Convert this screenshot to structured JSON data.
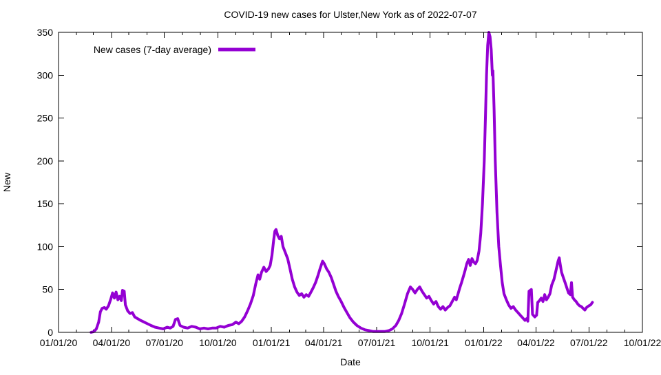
{
  "chart_data": {
    "type": "line",
    "title": "COVID-19 new cases for Ulster,New York as of 2022-07-07",
    "xlabel": "Date",
    "ylabel": "New",
    "x_range": [
      "2020-01-01",
      "2022-10-01"
    ],
    "ylim": [
      0,
      350
    ],
    "grid": false,
    "y_ticks": [
      0,
      50,
      100,
      150,
      200,
      250,
      300,
      350
    ],
    "x_ticks": [
      {
        "date": "2020-01-01",
        "label": "01/01/20"
      },
      {
        "date": "2020-04-01",
        "label": "04/01/20"
      },
      {
        "date": "2020-07-01",
        "label": "07/01/20"
      },
      {
        "date": "2020-10-01",
        "label": "10/01/20"
      },
      {
        "date": "2021-01-01",
        "label": "01/01/21"
      },
      {
        "date": "2021-04-01",
        "label": "04/01/21"
      },
      {
        "date": "2021-07-01",
        "label": "07/01/21"
      },
      {
        "date": "2021-10-01",
        "label": "10/01/21"
      },
      {
        "date": "2022-01-01",
        "label": "01/01/22"
      },
      {
        "date": "2022-04-01",
        "label": "04/01/22"
      },
      {
        "date": "2022-07-01",
        "label": "07/01/22"
      },
      {
        "date": "2022-10-01",
        "label": "10/01/22"
      }
    ],
    "x_minor_unit": "month",
    "legend": {
      "position": "top-left-inside",
      "entries": [
        {
          "label": "New cases (7-day average)",
          "color": "#9400d3"
        }
      ]
    },
    "series": [
      {
        "name": "New cases (7-day average)",
        "color": "#9400d3",
        "line_width": 4,
        "points": [
          [
            "2020-02-26",
            0
          ],
          [
            "2020-03-02",
            1
          ],
          [
            "2020-03-06",
            4
          ],
          [
            "2020-03-10",
            12
          ],
          [
            "2020-03-13",
            24
          ],
          [
            "2020-03-16",
            28
          ],
          [
            "2020-03-20",
            29
          ],
          [
            "2020-03-23",
            27
          ],
          [
            "2020-03-27",
            31
          ],
          [
            "2020-03-31",
            39
          ],
          [
            "2020-04-03",
            46
          ],
          [
            "2020-04-06",
            40
          ],
          [
            "2020-04-09",
            47
          ],
          [
            "2020-04-12",
            38
          ],
          [
            "2020-04-15",
            42
          ],
          [
            "2020-04-18",
            37
          ],
          [
            "2020-04-20",
            49
          ],
          [
            "2020-04-23",
            48
          ],
          [
            "2020-04-25",
            32
          ],
          [
            "2020-04-29",
            25
          ],
          [
            "2020-05-03",
            22
          ],
          [
            "2020-05-07",
            23
          ],
          [
            "2020-05-11",
            18
          ],
          [
            "2020-05-16",
            16
          ],
          [
            "2020-05-21",
            14
          ],
          [
            "2020-05-27",
            12
          ],
          [
            "2020-06-02",
            10
          ],
          [
            "2020-06-08",
            8
          ],
          [
            "2020-06-15",
            6
          ],
          [
            "2020-06-22",
            5
          ],
          [
            "2020-06-29",
            4
          ],
          [
            "2020-07-06",
            6
          ],
          [
            "2020-07-11",
            5
          ],
          [
            "2020-07-16",
            7
          ],
          [
            "2020-07-20",
            15
          ],
          [
            "2020-07-24",
            16
          ],
          [
            "2020-07-28",
            8
          ],
          [
            "2020-08-03",
            6
          ],
          [
            "2020-08-10",
            5
          ],
          [
            "2020-08-17",
            7
          ],
          [
            "2020-08-24",
            6
          ],
          [
            "2020-08-31",
            4
          ],
          [
            "2020-09-07",
            5
          ],
          [
            "2020-09-14",
            4
          ],
          [
            "2020-09-21",
            5
          ],
          [
            "2020-09-28",
            5
          ],
          [
            "2020-10-05",
            7
          ],
          [
            "2020-10-12",
            6
          ],
          [
            "2020-10-19",
            8
          ],
          [
            "2020-10-26",
            9
          ],
          [
            "2020-11-01",
            12
          ],
          [
            "2020-11-06",
            10
          ],
          [
            "2020-11-11",
            13
          ],
          [
            "2020-11-16",
            18
          ],
          [
            "2020-11-21",
            25
          ],
          [
            "2020-11-26",
            33
          ],
          [
            "2020-12-01",
            43
          ],
          [
            "2020-12-05",
            56
          ],
          [
            "2020-12-09",
            67
          ],
          [
            "2020-12-12",
            62
          ],
          [
            "2020-12-15",
            70
          ],
          [
            "2020-12-19",
            76
          ],
          [
            "2020-12-23",
            71
          ],
          [
            "2020-12-27",
            74
          ],
          [
            "2020-12-30",
            78
          ],
          [
            "2021-01-02",
            90
          ],
          [
            "2021-01-05",
            108
          ],
          [
            "2021-01-07",
            118
          ],
          [
            "2021-01-09",
            120
          ],
          [
            "2021-01-12",
            113
          ],
          [
            "2021-01-15",
            109
          ],
          [
            "2021-01-18",
            112
          ],
          [
            "2021-01-21",
            100
          ],
          [
            "2021-01-25",
            93
          ],
          [
            "2021-01-29",
            86
          ],
          [
            "2021-02-02",
            74
          ],
          [
            "2021-02-06",
            62
          ],
          [
            "2021-02-10",
            53
          ],
          [
            "2021-02-14",
            47
          ],
          [
            "2021-02-18",
            43
          ],
          [
            "2021-02-22",
            45
          ],
          [
            "2021-02-26",
            41
          ],
          [
            "2021-03-02",
            44
          ],
          [
            "2021-03-06",
            42
          ],
          [
            "2021-03-10",
            47
          ],
          [
            "2021-03-14",
            52
          ],
          [
            "2021-03-18",
            58
          ],
          [
            "2021-03-22",
            66
          ],
          [
            "2021-03-26",
            75
          ],
          [
            "2021-03-30",
            83
          ],
          [
            "2021-04-02",
            80
          ],
          [
            "2021-04-06",
            74
          ],
          [
            "2021-04-10",
            70
          ],
          [
            "2021-04-14",
            64
          ],
          [
            "2021-04-18",
            56
          ],
          [
            "2021-04-22",
            48
          ],
          [
            "2021-04-26",
            42
          ],
          [
            "2021-05-01",
            36
          ],
          [
            "2021-05-06",
            29
          ],
          [
            "2021-05-11",
            23
          ],
          [
            "2021-05-16",
            17
          ],
          [
            "2021-05-22",
            12
          ],
          [
            "2021-05-28",
            8
          ],
          [
            "2021-06-04",
            5
          ],
          [
            "2021-06-11",
            3
          ],
          [
            "2021-06-18",
            2
          ],
          [
            "2021-06-25",
            1
          ],
          [
            "2021-07-05",
            1
          ],
          [
            "2021-07-15",
            1
          ],
          [
            "2021-07-22",
            2
          ],
          [
            "2021-07-28",
            4
          ],
          [
            "2021-08-03",
            8
          ],
          [
            "2021-08-08",
            14
          ],
          [
            "2021-08-13",
            22
          ],
          [
            "2021-08-18",
            33
          ],
          [
            "2021-08-23",
            45
          ],
          [
            "2021-08-28",
            53
          ],
          [
            "2021-09-01",
            50
          ],
          [
            "2021-09-05",
            46
          ],
          [
            "2021-09-09",
            50
          ],
          [
            "2021-09-13",
            53
          ],
          [
            "2021-09-17",
            48
          ],
          [
            "2021-09-21",
            44
          ],
          [
            "2021-09-25",
            40
          ],
          [
            "2021-09-29",
            42
          ],
          [
            "2021-10-03",
            37
          ],
          [
            "2021-10-07",
            33
          ],
          [
            "2021-10-11",
            36
          ],
          [
            "2021-10-15",
            30
          ],
          [
            "2021-10-19",
            27
          ],
          [
            "2021-10-23",
            30
          ],
          [
            "2021-10-27",
            26
          ],
          [
            "2021-10-31",
            29
          ],
          [
            "2021-11-04",
            31
          ],
          [
            "2021-11-08",
            36
          ],
          [
            "2021-11-12",
            41
          ],
          [
            "2021-11-15",
            38
          ],
          [
            "2021-11-18",
            45
          ],
          [
            "2021-11-21",
            52
          ],
          [
            "2021-11-24",
            58
          ],
          [
            "2021-11-27",
            65
          ],
          [
            "2021-11-30",
            72
          ],
          [
            "2021-12-03",
            80
          ],
          [
            "2021-12-06",
            85
          ],
          [
            "2021-12-09",
            78
          ],
          [
            "2021-12-12",
            86
          ],
          [
            "2021-12-15",
            82
          ],
          [
            "2021-12-18",
            80
          ],
          [
            "2021-12-21",
            84
          ],
          [
            "2021-12-24",
            95
          ],
          [
            "2021-12-27",
            115
          ],
          [
            "2021-12-30",
            150
          ],
          [
            "2022-01-02",
            200
          ],
          [
            "2022-01-04",
            250
          ],
          [
            "2022-01-06",
            300
          ],
          [
            "2022-01-08",
            335
          ],
          [
            "2022-01-10",
            350
          ],
          [
            "2022-01-12",
            345
          ],
          [
            "2022-01-14",
            330
          ],
          [
            "2022-01-16",
            300
          ],
          [
            "2022-01-17",
            305
          ],
          [
            "2022-01-19",
            260
          ],
          [
            "2022-01-21",
            200
          ],
          [
            "2022-01-24",
            140
          ],
          [
            "2022-01-27",
            100
          ],
          [
            "2022-01-30",
            78
          ],
          [
            "2022-02-02",
            58
          ],
          [
            "2022-02-05",
            45
          ],
          [
            "2022-02-09",
            38
          ],
          [
            "2022-02-13",
            32
          ],
          [
            "2022-02-17",
            28
          ],
          [
            "2022-02-21",
            30
          ],
          [
            "2022-02-25",
            26
          ],
          [
            "2022-03-01",
            23
          ],
          [
            "2022-03-05",
            20
          ],
          [
            "2022-03-09",
            17
          ],
          [
            "2022-03-13",
            14
          ],
          [
            "2022-03-16",
            16
          ],
          [
            "2022-03-18",
            13
          ],
          [
            "2022-03-20",
            48
          ],
          [
            "2022-03-24",
            50
          ],
          [
            "2022-03-26",
            21
          ],
          [
            "2022-03-30",
            18
          ],
          [
            "2022-04-02",
            20
          ],
          [
            "2022-04-04",
            35
          ],
          [
            "2022-04-07",
            37
          ],
          [
            "2022-04-10",
            40
          ],
          [
            "2022-04-13",
            36
          ],
          [
            "2022-04-16",
            44
          ],
          [
            "2022-04-19",
            38
          ],
          [
            "2022-04-22",
            41
          ],
          [
            "2022-04-25",
            45
          ],
          [
            "2022-04-28",
            55
          ],
          [
            "2022-05-02",
            62
          ],
          [
            "2022-05-06",
            74
          ],
          [
            "2022-05-09",
            83
          ],
          [
            "2022-05-11",
            87
          ],
          [
            "2022-05-13",
            78
          ],
          [
            "2022-05-15",
            70
          ],
          [
            "2022-05-18",
            64
          ],
          [
            "2022-05-21",
            58
          ],
          [
            "2022-05-24",
            52
          ],
          [
            "2022-05-27",
            46
          ],
          [
            "2022-05-30",
            44
          ],
          [
            "2022-06-01",
            58
          ],
          [
            "2022-06-03",
            41
          ],
          [
            "2022-06-06",
            38
          ],
          [
            "2022-06-09",
            36
          ],
          [
            "2022-06-12",
            33
          ],
          [
            "2022-06-15",
            31
          ],
          [
            "2022-06-18",
            30
          ],
          [
            "2022-06-21",
            28
          ],
          [
            "2022-06-24",
            26
          ],
          [
            "2022-06-27",
            29
          ],
          [
            "2022-07-01",
            31
          ],
          [
            "2022-07-04",
            32
          ],
          [
            "2022-07-07",
            35
          ]
        ]
      }
    ]
  }
}
